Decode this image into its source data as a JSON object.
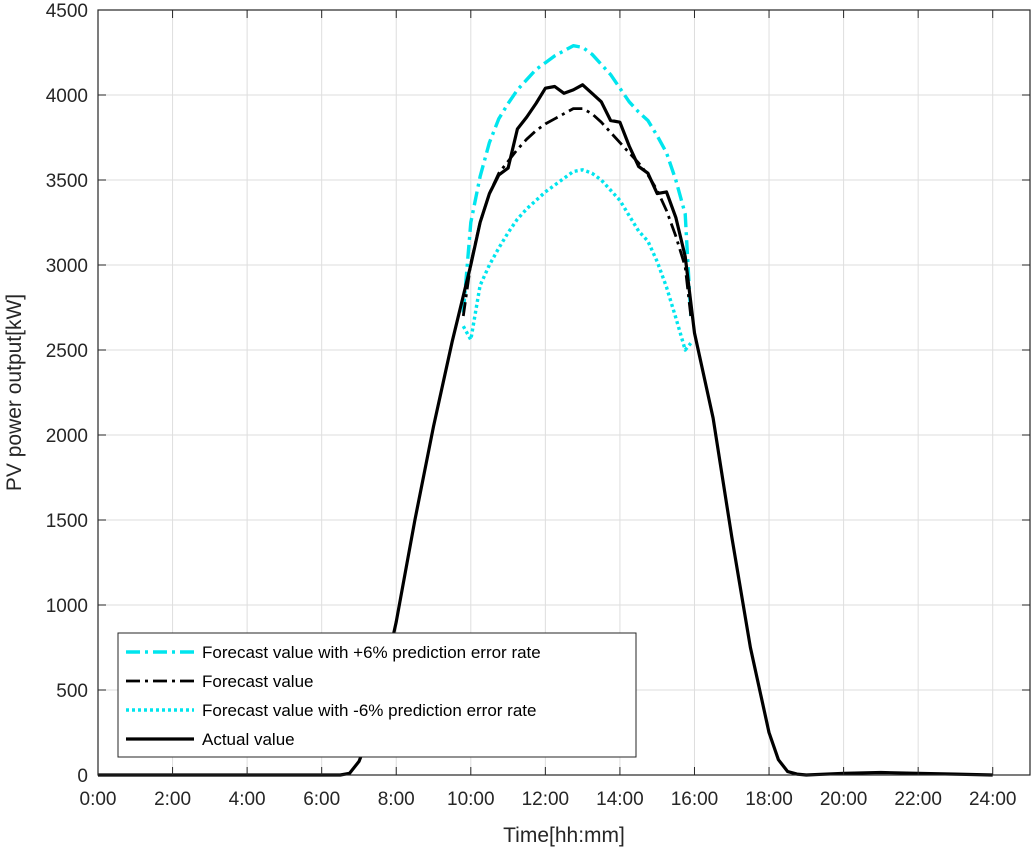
{
  "chart_data": {
    "type": "line",
    "title": "",
    "xlabel": "Time[hh:mm]",
    "ylabel": "PV power output[kW]",
    "xlim": [
      0,
      25
    ],
    "ylim": [
      0,
      4500
    ],
    "x_ticks": [
      0,
      2,
      4,
      6,
      8,
      10,
      12,
      14,
      16,
      18,
      20,
      22,
      24
    ],
    "x_tick_labels": [
      "0:00",
      "2:00",
      "4:00",
      "6:00",
      "8:00",
      "10:00",
      "12:00",
      "14:00",
      "16:00",
      "18:00",
      "20:00",
      "22:00",
      "24:00"
    ],
    "y_ticks": [
      0,
      500,
      1000,
      1500,
      2000,
      2500,
      3000,
      3500,
      4000,
      4500
    ],
    "y_tick_labels": [
      "0",
      "500",
      "1000",
      "1500",
      "2000",
      "2500",
      "3000",
      "3500",
      "4000",
      "4500"
    ],
    "grid": true,
    "legend_position": "bottom-left",
    "series": [
      {
        "name": "Forecast value with +6% prediction error rate",
        "color": "#00e5ee",
        "style": "dash-dot",
        "x": [
          9.8,
          10.0,
          10.25,
          10.5,
          10.75,
          11.0,
          11.25,
          11.5,
          11.75,
          12.0,
          12.25,
          12.5,
          12.75,
          13.0,
          13.25,
          13.5,
          13.75,
          14.0,
          14.25,
          14.5,
          14.75,
          15.0,
          15.25,
          15.5,
          15.75,
          15.9
        ],
        "y": [
          2720,
          3250,
          3520,
          3720,
          3860,
          3950,
          4030,
          4090,
          4150,
          4190,
          4230,
          4260,
          4290,
          4280,
          4240,
          4180,
          4120,
          4040,
          3960,
          3900,
          3850,
          3760,
          3660,
          3500,
          3300,
          2700
        ]
      },
      {
        "name": "Forecast value",
        "color": "#000000",
        "style": "dash-dot",
        "x": [
          9.8,
          10.0,
          10.25,
          10.5,
          10.75,
          11.0,
          11.25,
          11.5,
          11.75,
          12.0,
          12.25,
          12.5,
          12.75,
          13.0,
          13.25,
          13.5,
          13.75,
          14.0,
          14.25,
          14.5,
          14.75,
          15.0,
          15.25,
          15.5,
          15.75,
          15.9
        ],
        "y": [
          2700,
          3010,
          3250,
          3420,
          3540,
          3610,
          3680,
          3740,
          3790,
          3830,
          3860,
          3890,
          3920,
          3920,
          3890,
          3840,
          3780,
          3720,
          3660,
          3600,
          3530,
          3440,
          3320,
          3170,
          2990,
          2700
        ]
      },
      {
        "name": "Forecast value with -6% prediction error rate",
        "color": "#00e5ee",
        "style": "dotted",
        "x": [
          9.8,
          10.0,
          10.25,
          10.5,
          10.75,
          11.0,
          11.25,
          11.5,
          11.75,
          12.0,
          12.25,
          12.5,
          12.75,
          13.0,
          13.25,
          13.5,
          13.75,
          14.0,
          14.25,
          14.5,
          14.75,
          15.0,
          15.25,
          15.5,
          15.75,
          15.9
        ],
        "y": [
          2640,
          2560,
          2880,
          3000,
          3100,
          3190,
          3270,
          3330,
          3380,
          3430,
          3470,
          3510,
          3550,
          3560,
          3540,
          3500,
          3440,
          3380,
          3290,
          3200,
          3140,
          3020,
          2870,
          2690,
          2500,
          2540
        ]
      },
      {
        "name": "Actual value",
        "color": "#000000",
        "style": "solid",
        "x": [
          0,
          6.5,
          6.75,
          7.0,
          7.25,
          7.5,
          7.75,
          8.0,
          8.5,
          9.0,
          9.5,
          10.0,
          10.25,
          10.5,
          10.75,
          11.0,
          11.25,
          11.5,
          11.75,
          12.0,
          12.25,
          12.5,
          12.75,
          13.0,
          13.25,
          13.5,
          13.75,
          14.0,
          14.25,
          14.5,
          14.75,
          15.0,
          15.25,
          15.5,
          15.75,
          16.0,
          16.5,
          17.0,
          17.5,
          18.0,
          18.25,
          18.5,
          18.75,
          19.0,
          20.0,
          21.0,
          22.0,
          23.0,
          24.0
        ],
        "y": [
          0,
          0,
          10,
          80,
          220,
          420,
          650,
          900,
          1500,
          2050,
          2550,
          3000,
          3250,
          3420,
          3530,
          3570,
          3800,
          3870,
          3950,
          4040,
          4050,
          4010,
          4030,
          4060,
          4010,
          3960,
          3850,
          3840,
          3700,
          3580,
          3540,
          3420,
          3430,
          3280,
          3050,
          2600,
          2100,
          1400,
          750,
          250,
          90,
          20,
          5,
          0,
          10,
          15,
          10,
          5,
          0
        ]
      }
    ]
  }
}
